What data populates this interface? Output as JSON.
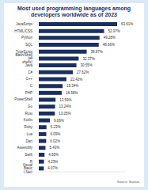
{
  "chart_data": {
    "type": "bar",
    "orientation": "horizontal",
    "title": "Most used programming languages among developers worldwide as of 2023",
    "source": "Source: Statista",
    "categories": [
      "JavaScript",
      "HTML/CSS",
      "Python",
      "SQL",
      "TypeScript",
      "Bash/Shell (all shells)",
      "Java",
      "C#",
      "C++",
      "C",
      "PHP",
      "PowerShell",
      "Go",
      "Rust",
      "Kotlin",
      "Ruby",
      "Lua",
      "Dart",
      "Assembly",
      "Swift",
      "R",
      "Visual Basic (.Net)"
    ],
    "values": [
      63.61,
      52.97,
      49.28,
      48.66,
      38.87,
      32.37,
      30.55,
      27.62,
      22.42,
      19.34,
      18.58,
      13.59,
      13.24,
      13.05,
      9.06,
      6.23,
      6.09,
      6.02,
      5.43,
      4.65,
      4.23,
      4.07
    ],
    "value_labels": [
      "63.61%",
      "52.97%",
      "49.28%",
      "48.66%",
      "38.87%",
      "32.37%",
      "30.55%",
      "27.62%",
      "22.42%",
      "19.34%",
      "18.58%",
      "13.59%",
      "13.24%",
      "13.05%",
      "9.06%",
      "6.23%",
      "6.09%",
      "6.02%",
      "5.43%",
      "4.65%",
      "4.23%",
      "4.07%"
    ],
    "color": "#1b2f5a",
    "xlim": [
      0,
      70
    ],
    "data_labels": true,
    "tick_labels": "y",
    "grid": false
  }
}
